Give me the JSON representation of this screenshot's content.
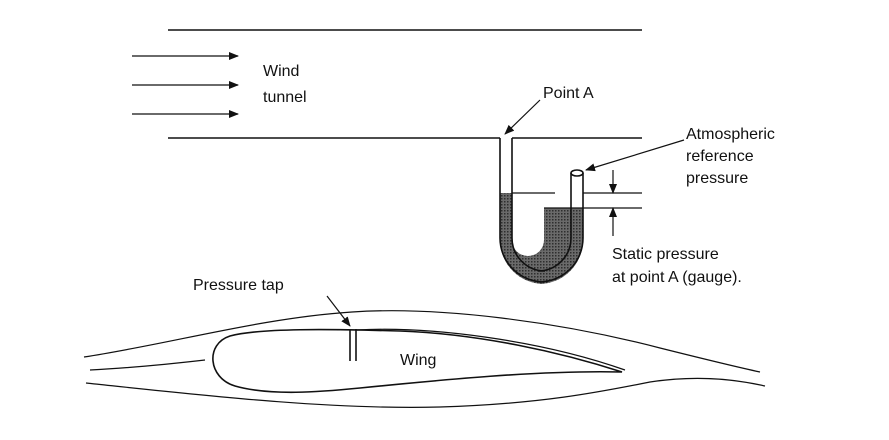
{
  "labels": {
    "wind_line1": "Wind",
    "wind_line2": "tunnel",
    "point_a": "Point A",
    "atm_line1": "Atmospheric",
    "atm_line2": "reference",
    "atm_line3": "pressure",
    "static_line1": "Static pressure",
    "static_line2": "at point A (gauge).",
    "pressure_tap": "Pressure tap",
    "wing": "Wing"
  },
  "colors": {
    "ink": "#111111",
    "manometer_fluid": "#555555"
  }
}
